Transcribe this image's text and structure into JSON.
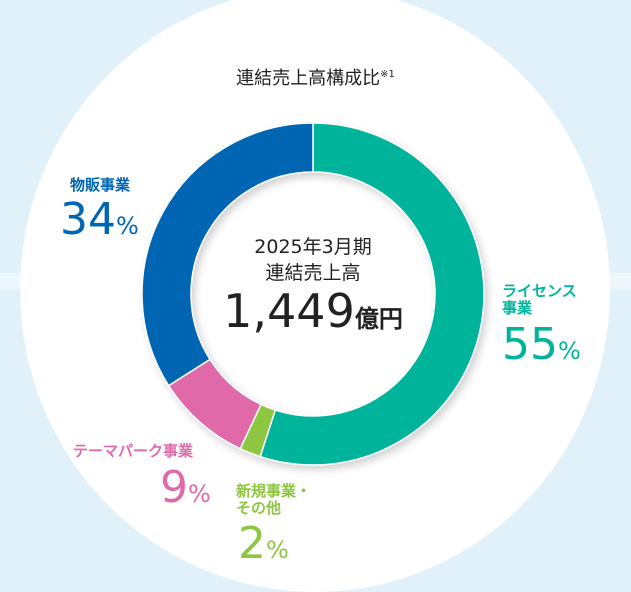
{
  "chart_data": {
    "type": "pie",
    "donut": true,
    "title": "連結売上高構成比",
    "title_note": "※1",
    "center_label": [
      "2025年3月期",
      "連結売上高"
    ],
    "center_value": "1,449",
    "center_unit": "億円",
    "segments": [
      {
        "name": "ライセンス事業",
        "label_lines": [
          "ライセンス",
          "事業"
        ],
        "value": 55,
        "color": "#00b49b"
      },
      {
        "name": "新規事業・その他",
        "label_lines": [
          "新規事業・",
          "その他"
        ],
        "value": 2,
        "color": "#8dc63f"
      },
      {
        "name": "テーマパーク事業",
        "label_lines": [
          "テーマパーク事業"
        ],
        "value": 9,
        "color": "#e06aa9"
      },
      {
        "name": "物販事業",
        "label_lines": [
          "物販事業"
        ],
        "value": 34,
        "color": "#0066b3"
      }
    ],
    "unit": "%",
    "start": "top",
    "direction": "clockwise"
  }
}
